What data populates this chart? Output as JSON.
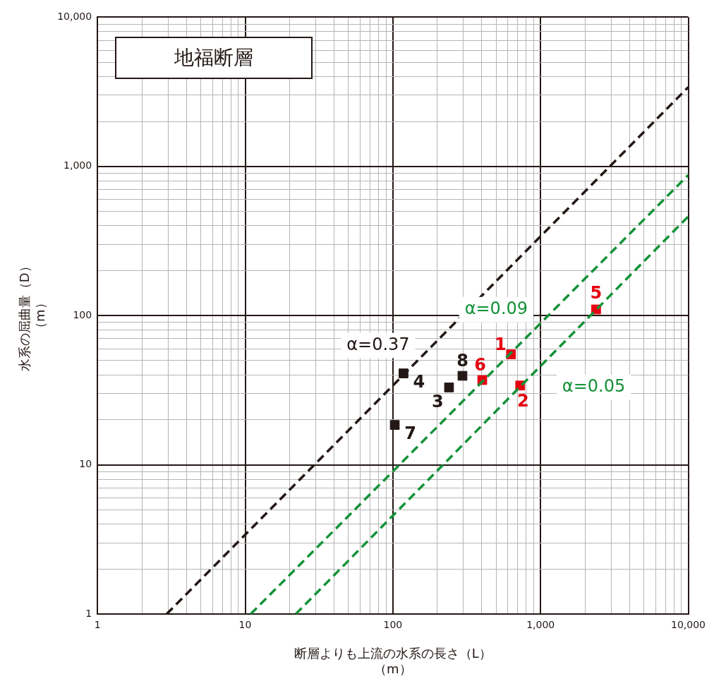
{
  "chart_data": {
    "type": "scatter",
    "title": "地福断層",
    "xlabel": "断層よりも上流の水系の長さ（L）（m）",
    "ylabel": "水系の屈曲量（D）（m）",
    "log": "xy",
    "grid": true,
    "legend": false,
    "xlim": [
      1,
      10000
    ],
    "ylim": [
      1,
      10000
    ],
    "xticks": [
      1,
      {
        "value": 2,
        "label": null
      },
      {
        "value": 3,
        "label": null
      },
      {
        "value": 4,
        "label": null
      },
      {
        "value": 5,
        "label": null
      },
      {
        "value": 6,
        "label": null
      },
      {
        "value": 7,
        "label": null
      },
      {
        "value": 8,
        "label": null
      },
      {
        "value": 9,
        "label": null
      },
      10,
      {
        "value": 20,
        "label": null
      },
      {
        "value": 30,
        "label": null
      },
      {
        "value": 40,
        "label": null
      },
      {
        "value": 50,
        "label": null
      },
      {
        "value": 60,
        "label": null
      },
      {
        "value": 70,
        "label": null
      },
      {
        "value": 80,
        "label": null
      },
      {
        "value": 90,
        "label": null
      },
      100,
      {
        "value": 200,
        "label": null
      },
      {
        "value": 300,
        "label": null
      },
      {
        "value": 400,
        "label": null
      },
      {
        "value": 500,
        "label": null
      },
      {
        "value": 600,
        "label": null
      },
      {
        "value": 700,
        "label": null
      },
      {
        "value": 800,
        "label": null
      },
      {
        "value": 900,
        "label": null
      },
      {
        "value": 1000,
        "label": "1,000"
      },
      {
        "value": 2000,
        "label": null
      },
      {
        "value": 3000,
        "label": null
      },
      {
        "value": 4000,
        "label": null
      },
      {
        "value": 5000,
        "label": null
      },
      {
        "value": 6000,
        "label": null
      },
      {
        "value": 7000,
        "label": null
      },
      {
        "value": 8000,
        "label": null
      },
      {
        "value": 9000,
        "label": null
      },
      {
        "value": 10000,
        "label": "10,000"
      }
    ],
    "yticks": [
      1,
      {
        "value": 2,
        "label": null
      },
      {
        "value": 3,
        "label": null
      },
      {
        "value": 4,
        "label": null
      },
      {
        "value": 5,
        "label": null
      },
      {
        "value": 6,
        "label": null
      },
      {
        "value": 7,
        "label": null
      },
      {
        "value": 8,
        "label": null
      },
      {
        "value": 9,
        "label": null
      },
      10,
      {
        "value": 20,
        "label": null
      },
      {
        "value": 30,
        "label": null
      },
      {
        "value": 40,
        "label": null
      },
      {
        "value": 50,
        "label": null
      },
      {
        "value": 60,
        "label": null
      },
      {
        "value": 70,
        "label": null
      },
      {
        "value": 80,
        "label": null
      },
      {
        "value": 90,
        "label": null
      },
      100,
      {
        "value": 200,
        "label": null
      },
      {
        "value": 300,
        "label": null
      },
      {
        "value": 400,
        "label": null
      },
      {
        "value": 500,
        "label": null
      },
      {
        "value": 600,
        "label": null
      },
      {
        "value": 700,
        "label": null
      },
      {
        "value": 800,
        "label": null
      },
      {
        "value": 900,
        "label": null
      },
      {
        "value": 1000,
        "label": "1,000"
      },
      {
        "value": 2000,
        "label": null
      },
      {
        "value": 3000,
        "label": null
      },
      {
        "value": 4000,
        "label": null
      },
      {
        "value": 5000,
        "label": null
      },
      {
        "value": 6000,
        "label": null
      },
      {
        "value": 7000,
        "label": null
      },
      {
        "value": 8000,
        "label": null
      },
      {
        "value": 9000,
        "label": null
      },
      {
        "value": 10000,
        "label": "10,000"
      }
    ],
    "series": [
      {
        "type": "line",
        "color": "#231815",
        "x": [
          2.94,
          10000
        ],
        "values": [
          1,
          3400
        ],
        "line_style": "dashed",
        "marker": "none"
      },
      {
        "type": "line",
        "color": "#159238",
        "x": [
          10.9,
          10000
        ],
        "values": [
          1,
          875
        ],
        "line_style": "dashed",
        "marker": "none"
      },
      {
        "type": "line",
        "color": "#159238",
        "x": [
          22,
          10000
        ],
        "values": [
          1,
          462
        ],
        "line_style": "dashed",
        "marker": "none"
      },
      {
        "color": "#231815",
        "marker": "square",
        "x": [
          118,
          103,
          240,
          296
        ],
        "values": [
          41,
          18.5,
          33,
          39.5
        ]
      },
      {
        "color": "#e60012",
        "marker": "square",
        "x": [
          631,
          728,
          403,
          2377
        ],
        "values": [
          55,
          34,
          37,
          110
        ]
      }
    ],
    "annotations": [
      "α=0.37",
      "α=0.09",
      "α=0.05",
      {
        "text": "4",
        "x": 118,
        "y": 41
      },
      {
        "text": "7",
        "x": 103,
        "y": 18.5
      },
      {
        "text": "3",
        "x": 240,
        "y": 33
      },
      {
        "text": "8",
        "x": 296,
        "y": 39.5
      },
      {
        "text": "1",
        "x": 631,
        "y": 55
      },
      {
        "text": "2",
        "x": 728,
        "y": 34
      },
      {
        "text": "6",
        "x": 403,
        "y": 37
      },
      {
        "text": "5",
        "x": 2377,
        "y": 110
      }
    ]
  }
}
